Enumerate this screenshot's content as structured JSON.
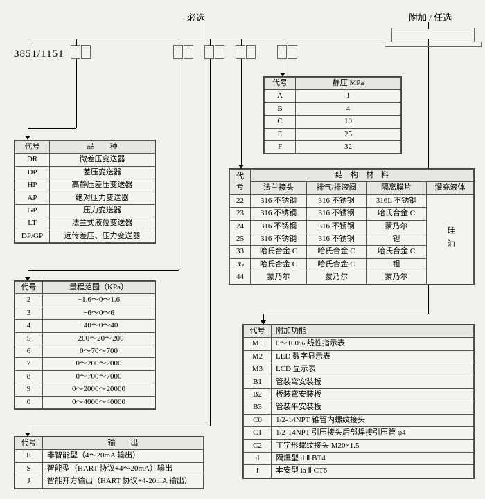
{
  "headers": {
    "required": "必选",
    "optional": "附加 / 任选"
  },
  "root": "3851/1151",
  "tables": {
    "static_pressure": {
      "h_code": "代号",
      "h_val": "静压 MPa",
      "rows": [
        {
          "c": "A",
          "v": "1"
        },
        {
          "c": "B",
          "v": "4"
        },
        {
          "c": "C",
          "v": "10"
        },
        {
          "c": "E",
          "v": "25"
        },
        {
          "c": "F",
          "v": "32"
        }
      ]
    },
    "variety": {
      "h_code": "代号",
      "h_val": "品　　种",
      "rows": [
        {
          "c": "DR",
          "v": "微差压变送器"
        },
        {
          "c": "DP",
          "v": "差压变送器"
        },
        {
          "c": "HP",
          "v": "高静压差压变送器"
        },
        {
          "c": "AP",
          "v": "绝对压力变送器"
        },
        {
          "c": "GP",
          "v": "压力变送器"
        },
        {
          "c": "LT",
          "v": "法兰式液位变送器"
        },
        {
          "c": "DP/GP",
          "v": "远传差压、压力变送器"
        }
      ]
    },
    "structure": {
      "h_code": "代号",
      "h_title": "结　构　材　料",
      "h_c1": "法兰接头",
      "h_c2": "排气/排液阀",
      "h_c3": "隔离膜片",
      "h_c4": "灌充液体",
      "fill": "硅油",
      "rows": [
        {
          "c": "22",
          "a": "316 不锈钢",
          "b": "316 不锈钢",
          "d": "316L 不锈钢"
        },
        {
          "c": "23",
          "a": "316 不锈钢",
          "b": "316 不锈钢",
          "d": "哈氏合金 C"
        },
        {
          "c": "24",
          "a": "316 不锈钢",
          "b": "316 不锈钢",
          "d": "蒙乃尔"
        },
        {
          "c": "25",
          "a": "316 不锈钢",
          "b": "316 不锈钢",
          "d": "钽"
        },
        {
          "c": "33",
          "a": "哈氏合金 C",
          "b": "哈氏合金 C",
          "d": "哈氏合金 C"
        },
        {
          "c": "35",
          "a": "哈氏合金 C",
          "b": "哈氏合金 C",
          "d": "钽"
        },
        {
          "c": "44",
          "a": "蒙乃尔",
          "b": "蒙乃尔",
          "d": "蒙乃尔"
        }
      ]
    },
    "range": {
      "h_code": "代号",
      "h_val": "量程范围（KPa）",
      "rows": [
        {
          "c": "2",
          "v": "−1.6～0～1.6"
        },
        {
          "c": "3",
          "v": "−6～0～6"
        },
        {
          "c": "4",
          "v": "−40～0～40"
        },
        {
          "c": "5",
          "v": "−200～20～200"
        },
        {
          "c": "6",
          "v": "0～70～700"
        },
        {
          "c": "7",
          "v": "0～200～2000"
        },
        {
          "c": "8",
          "v": "0～700～7000"
        },
        {
          "c": "9",
          "v": "0～2000～20000"
        },
        {
          "c": "0",
          "v": "0～4000～40000"
        }
      ]
    },
    "add_func": {
      "h_code": "代号",
      "h_val": "附加功能",
      "rows": [
        {
          "c": "M1",
          "v": "0～100% 线性指示表"
        },
        {
          "c": "M2",
          "v": "LED 数字显示表"
        },
        {
          "c": "M3",
          "v": "LCD 显示表"
        },
        {
          "c": "B1",
          "v": "管装弯安装板"
        },
        {
          "c": "B2",
          "v": "板装弯安装板"
        },
        {
          "c": "B3",
          "v": "管装平安装板"
        },
        {
          "c": "C0",
          "v": "1/2-14NPT 锥管内螺纹接头"
        },
        {
          "c": "C1",
          "v": "1/2-14NPT 引压接头后部焊接引压管 φ4"
        },
        {
          "c": "C2",
          "v": "丁字形螺纹接头 M20×1.5"
        },
        {
          "c": "d",
          "v": "隔爆型 d Ⅱ BT4"
        },
        {
          "c": "i",
          "v": "本安型 ia Ⅱ CT6"
        }
      ]
    },
    "output": {
      "h_code": "代号",
      "h_val": "输　　出",
      "rows": [
        {
          "c": "E",
          "v": "非智能型（4～20mA 输出）"
        },
        {
          "c": "S",
          "v": "智能型（HART 协议+4～20mA）输出"
        },
        {
          "c": "J",
          "v": "智能开方输出（HART 协议+4-20mA 输出）"
        }
      ]
    }
  },
  "style": {
    "bg": "#f2f0ed",
    "border": "#555"
  }
}
